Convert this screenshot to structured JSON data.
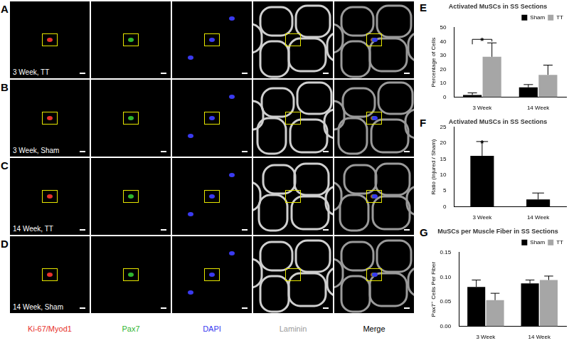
{
  "panels": {
    "rows": [
      {
        "letter": "A",
        "label": "3 Week, TT"
      },
      {
        "letter": "B",
        "label": "3 Week, Sham"
      },
      {
        "letter": "C",
        "label": "14 Week, TT"
      },
      {
        "letter": "D",
        "label": "14 Week, Sham"
      }
    ],
    "channels": [
      {
        "name": "Ki-67/Myod1",
        "color": "#e8322b"
      },
      {
        "name": "Pax7",
        "color": "#2fb52f"
      },
      {
        "name": "DAPI",
        "color": "#3a3af0"
      },
      {
        "name": "Laminin",
        "color": "#9a9a9a"
      },
      {
        "name": "Merge",
        "color": "#000000"
      }
    ]
  },
  "chart_data": [
    {
      "panel": "E",
      "type": "bar",
      "title": "Activated MuSCs in SS Sections",
      "y_label": "Percentage of Cells",
      "categories": [
        "3 Week",
        "14 Week"
      ],
      "series": [
        {
          "name": "Sham",
          "color": "#000000",
          "values": [
            1.5,
            7
          ],
          "errors": [
            1.5,
            2
          ]
        },
        {
          "name": "TT",
          "color": "#a6a6a6",
          "values": [
            29,
            16
          ],
          "errors": [
            10,
            7
          ]
        }
      ],
      "ylim": [
        0,
        50
      ],
      "yticks": [
        0,
        10,
        20,
        30,
        40,
        50
      ],
      "grid": false,
      "legend": "upper right",
      "annotations": [
        {
          "text": "*",
          "category": "3 Week",
          "between": [
            "Sham",
            "TT"
          ]
        }
      ]
    },
    {
      "panel": "F",
      "type": "bar",
      "title": "Activated MuSCs in SS Sections",
      "y_label": "Ratio (Injured / Sham)",
      "categories": [
        "3 Week",
        "14 Week"
      ],
      "values": [
        16,
        2.3
      ],
      "errors": [
        4.5,
        2
      ],
      "color": "#000000",
      "ylim": [
        0,
        25
      ],
      "yticks": [
        0,
        5,
        10,
        15,
        20,
        25
      ],
      "grid": false,
      "annotations": [
        {
          "text": "*",
          "category": "3 Week"
        }
      ]
    },
    {
      "panel": "G",
      "type": "bar",
      "title": "MuSCs per Muscle Fiber in SS Sections",
      "y_label": "Pax7⁺ Cells Per Fiber",
      "categories": [
        "3 Week",
        "14 Week"
      ],
      "series": [
        {
          "name": "Sham",
          "color": "#000000",
          "values": [
            0.08,
            0.087
          ],
          "errors": [
            0.014,
            0.007
          ]
        },
        {
          "name": "TT",
          "color": "#a6a6a6",
          "values": [
            0.053,
            0.094
          ],
          "errors": [
            0.014,
            0.008
          ]
        }
      ],
      "ylim": [
        0,
        0.15
      ],
      "yticks": [
        {
          "value": 0,
          "label": "0.00"
        },
        {
          "value": 0.05,
          "label": "0.05"
        },
        {
          "value": 0.1,
          "label": "0.10"
        },
        {
          "value": 0.15,
          "label": "0.15"
        }
      ],
      "grid": false,
      "legend": "upper right"
    }
  ]
}
